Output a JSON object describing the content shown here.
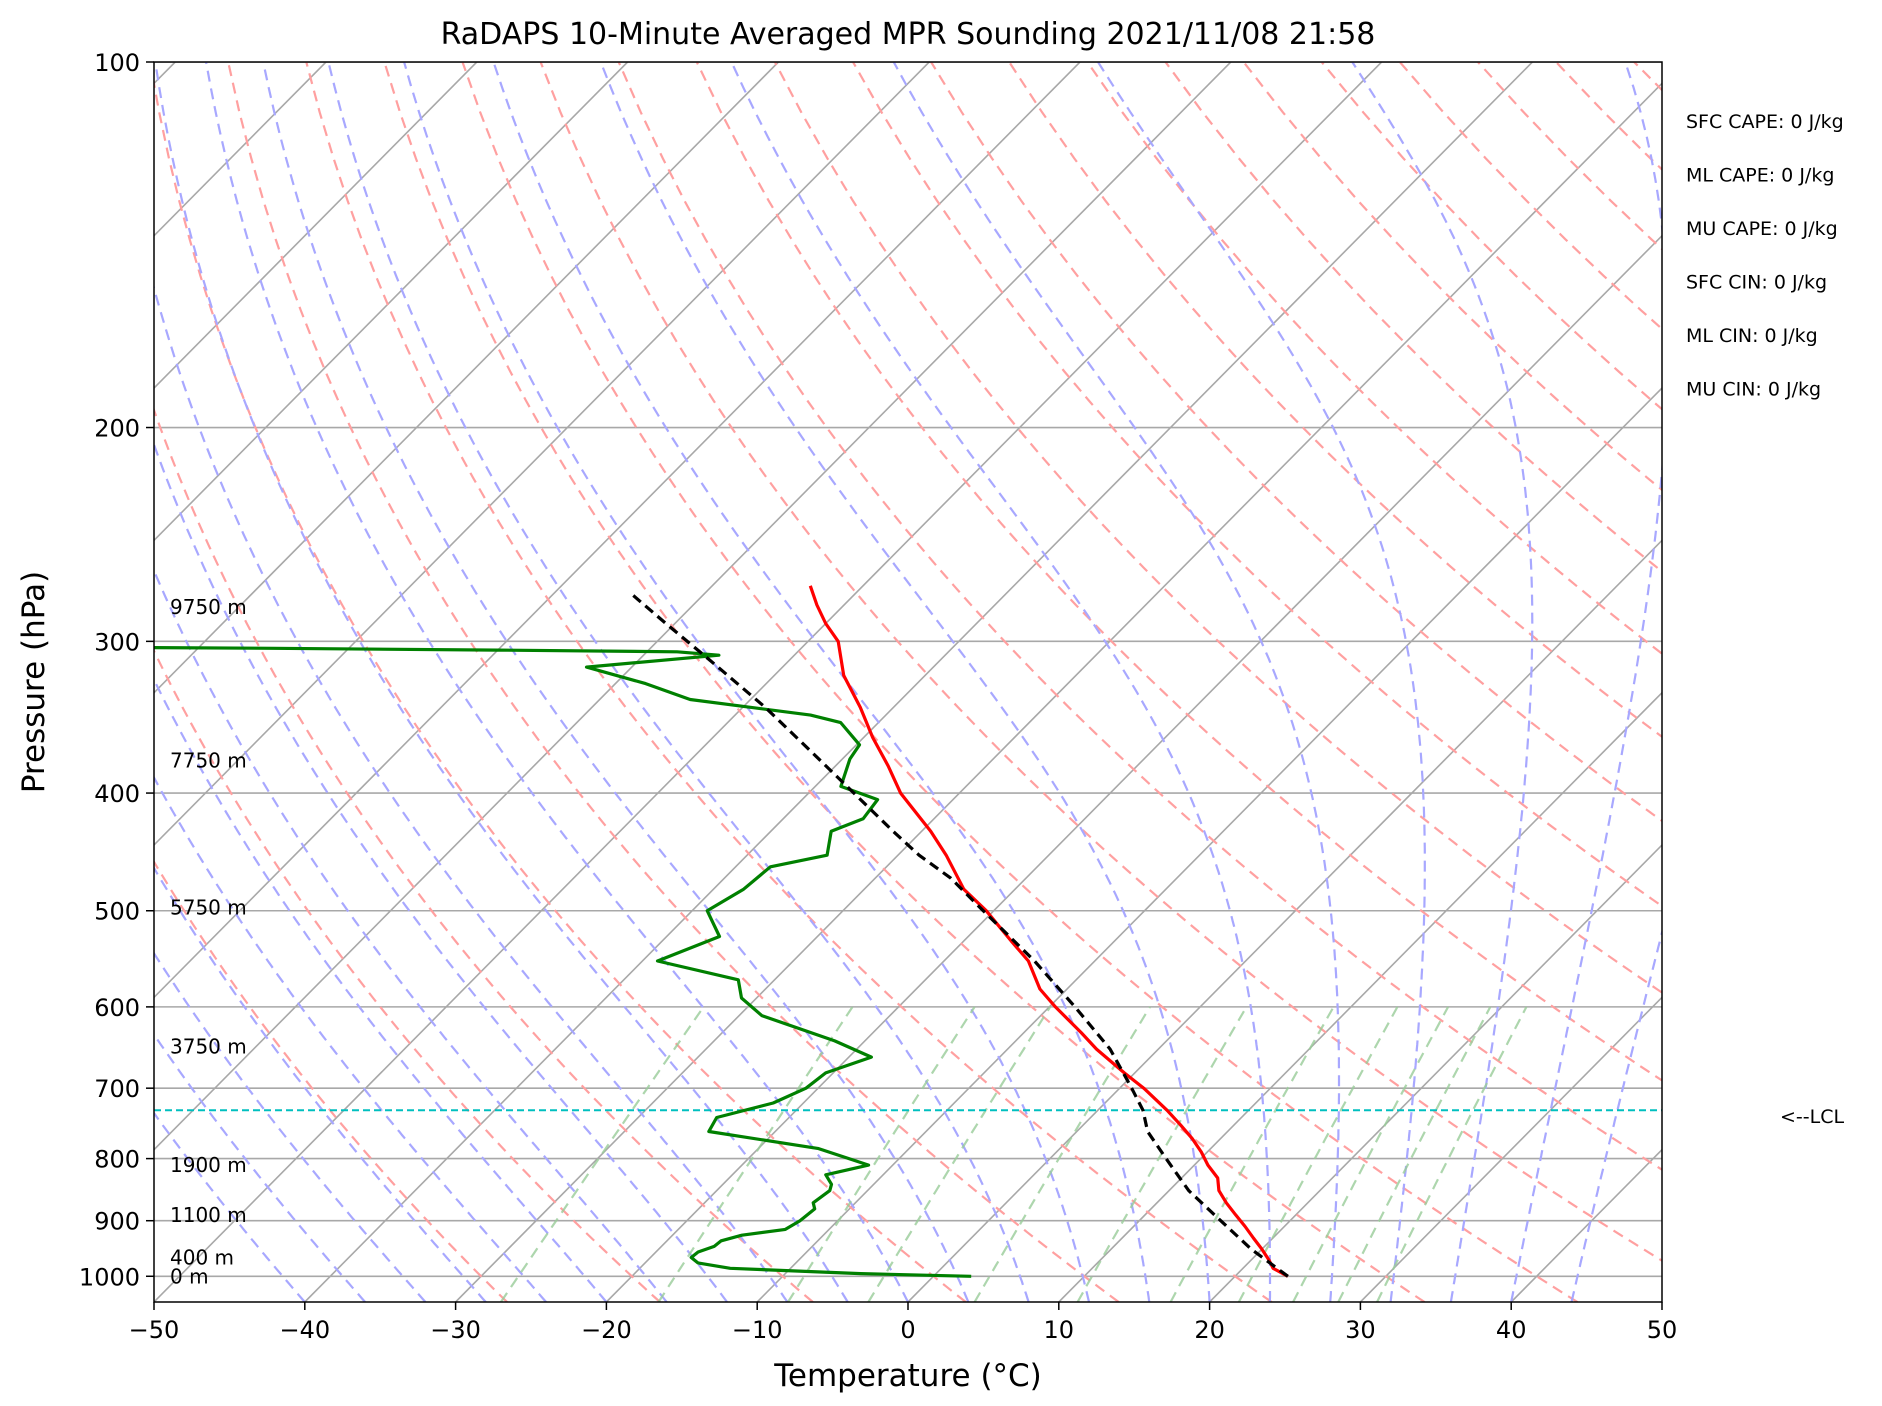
{
  "chart_data": {
    "type": "line",
    "title": "RaDAPS 10-Minute Averaged MPR Sounding 2021/11/08 21:58",
    "xlabel": "Temperature (°C)",
    "ylabel": "Pressure (hPa)",
    "xlim": [
      -50,
      50
    ],
    "ylim": [
      1050,
      100
    ],
    "y_scale": "log",
    "skew_t": true,
    "grid": true,
    "x_ticks": [
      -50,
      -40,
      -30,
      -20,
      -10,
      0,
      10,
      20,
      30,
      40,
      50
    ],
    "x_tick_labels": [
      "−50",
      "−40",
      "−30",
      "−20",
      "−10",
      "0",
      "10",
      "20",
      "30",
      "40",
      "50"
    ],
    "y_ticks": [
      100,
      200,
      300,
      400,
      500,
      600,
      700,
      800,
      900,
      1000
    ],
    "y_tick_labels": [
      "100",
      "200",
      "300",
      "400",
      "500",
      "600",
      "700",
      "800",
      "900",
      "1000"
    ],
    "series": [
      {
        "kind": "temperature",
        "color": "#ff0000",
        "p": [
          1000,
          985,
          970,
          950,
          930,
          910,
          890,
          870,
          850,
          830,
          810,
          790,
          770,
          750,
          730,
          700,
          680,
          650,
          630,
          600,
          580,
          550,
          530,
          500,
          480,
          450,
          430,
          400,
          380,
          360,
          340,
          320,
          300,
          290,
          280,
          270
        ],
        "t": [
          23.5,
          22.0,
          21.2,
          20.0,
          18.7,
          17.4,
          16.0,
          14.6,
          13.3,
          12.4,
          10.9,
          9.6,
          8.1,
          6.4,
          4.6,
          1.6,
          -0.7,
          -4.1,
          -6.2,
          -9.6,
          -11.8,
          -14.4,
          -16.8,
          -20.5,
          -23.4,
          -26.8,
          -29.4,
          -33.9,
          -36.5,
          -39.4,
          -42.2,
          -45.4,
          -48.0,
          -50.0,
          -51.8,
          -53.5
        ]
      },
      {
        "kind": "dewpoint",
        "color": "#008000",
        "p": [
          1000,
          995,
          985,
          975,
          965,
          955,
          945,
          935,
          925,
          915,
          900,
          880,
          870,
          850,
          840,
          825,
          810,
          785,
          760,
          740,
          720,
          700,
          680,
          660,
          640,
          610,
          590,
          570,
          550,
          525,
          500,
          480,
          460,
          450,
          430,
          420,
          405,
          395,
          375,
          365,
          350,
          345,
          335,
          325,
          315,
          308,
          306,
          305,
          304,
          303
        ],
        "td": [
          2.5,
          -5.0,
          -14.0,
          -16.5,
          -17.3,
          -17.2,
          -16.5,
          -16.4,
          -15.4,
          -12.9,
          -12.5,
          -12.3,
          -12.8,
          -12.5,
          -12.8,
          -13.8,
          -11.6,
          -16.0,
          -24.4,
          -24.8,
          -22.0,
          -20.8,
          -20.5,
          -18.5,
          -22.0,
          -28.5,
          -31.0,
          -32.4,
          -39.0,
          -36.5,
          -39.0,
          -38.0,
          -37.7,
          -34.7,
          -36.0,
          -34.7,
          -35.0,
          -38.3,
          -39.5,
          -39.8,
          -42.5,
          -45.0,
          -54.0,
          -58.0,
          -63.0,
          -55.0,
          -58.0,
          -70.0,
          -85.0,
          -105.0
        ]
      },
      {
        "kind": "parcel",
        "color": "#000000",
        "p": [
          1000,
          950,
          900,
          850,
          800,
          760,
          730,
          700,
          650,
          600,
          550,
          500,
          470,
          450,
          430,
          400,
          370,
          340,
          310,
          290,
          275
        ],
        "t": [
          23.5,
          19.3,
          15.4,
          11.3,
          7.7,
          4.7,
          3.0,
          0.8,
          -3.2,
          -8.3,
          -14.0,
          -20.7,
          -25.0,
          -28.6,
          -31.9,
          -37.0,
          -42.5,
          -48.5,
          -55.5,
          -60.6,
          -64.6
        ]
      }
    ],
    "lcl_hpa": 730,
    "height_labels": [
      {
        "p": 1000,
        "label": "0 m"
      },
      {
        "p": 965,
        "label": "400 m"
      },
      {
        "p": 890,
        "label": "1100 m"
      },
      {
        "p": 810,
        "label": "1900 m"
      },
      {
        "p": 647,
        "label": "3750 m"
      },
      {
        "p": 497,
        "label": "5750 m"
      },
      {
        "p": 376,
        "label": "7750 m"
      },
      {
        "p": 281,
        "label": "9750 m"
      }
    ],
    "annotations": [
      "SFC CAPE: 0 J/kg",
      "ML CAPE: 0 J/kg",
      "MU CAPE: 0 J/kg",
      "SFC CIN: 0 J/kg",
      "ML CIN: 0 J/kg",
      "MU CIN: 0 J/kg"
    ],
    "lcl_label": "<--LCL",
    "reference_lines": {
      "isotherm_color": "#a8a8a8",
      "dry_adiabat_color": "#ffa0a0",
      "moist_adiabat_color": "#a8a8ff",
      "mixing_ratio_color": "#99cc99",
      "lcl_color": "#00bfbf"
    }
  }
}
